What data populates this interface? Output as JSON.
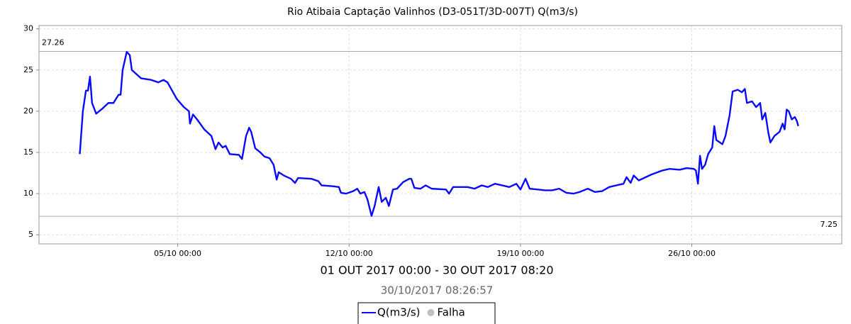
{
  "chart_data": {
    "type": "line",
    "title": "Rio Atibaia Captação Valinhos (D3-051T/3D-007T) Q(m3/s)",
    "subtitle": "01 OUT 2017 00:00 - 30 OUT 2017 08:20",
    "timestamp": "30/10/2017 08:26:57",
    "x": [
      "2017-10-01 00:00",
      "2017-10-01 03:00",
      "2017-10-01 06:00",
      "2017-10-01 08:00",
      "2017-10-01 10:00",
      "2017-10-01 12:00",
      "2017-10-01 16:00",
      "2017-10-01 22:00",
      "2017-10-02 04:00",
      "2017-10-02 09:00",
      "2017-10-02 14:00",
      "2017-10-02 16:00",
      "2017-10-02 18:00",
      "2017-10-02 22:00",
      "2017-10-03 01:00",
      "2017-10-03 03:00",
      "2017-10-03 12:00",
      "2017-10-03 22:00",
      "2017-10-04 05:00",
      "2017-10-04 10:00",
      "2017-10-04 14:00",
      "2017-10-04 23:00",
      "2017-10-05 06:00",
      "2017-10-05 11:00",
      "2017-10-05 12:00",
      "2017-10-05 15:00",
      "2017-10-05 19:00",
      "2017-10-06 02:00",
      "2017-10-06 09:00",
      "2017-10-06 13:00",
      "2017-10-06 16:00",
      "2017-10-06 20:00",
      "2017-10-06 23:00",
      "2017-10-07 03:00",
      "2017-10-07 12:00",
      "2017-10-07 15:00",
      "2017-10-07 19:00",
      "2017-10-07 22:00",
      "2017-10-08 00:00",
      "2017-10-08 04:00",
      "2017-10-08 09:00",
      "2017-10-08 13:00",
      "2017-10-08 18:00",
      "2017-10-08 22:00",
      "2017-10-09 01:00",
      "2017-10-09 03:00",
      "2017-10-09 08:00",
      "2017-10-09 15:00",
      "2017-10-09 19:00",
      "2017-10-09 22:00",
      "2017-10-10 11:00",
      "2017-10-10 18:00",
      "2017-10-10 21:00",
      "2017-10-11 08:00",
      "2017-10-11 14:00",
      "2017-10-11 16:00",
      "2017-10-11 21:00",
      "2017-10-12 04:00",
      "2017-10-12 08:00",
      "2017-10-12 11:00",
      "2017-10-12 15:00",
      "2017-10-12 18:00",
      "2017-10-12 22:00",
      "2017-10-13 01:00",
      "2017-10-13 05:00",
      "2017-10-13 08:00",
      "2017-10-13 12:00",
      "2017-10-13 15:00",
      "2017-10-13 19:00",
      "2017-10-13 23:00",
      "2017-10-14 05:00",
      "2017-10-14 11:00",
      "2017-10-14 13:00",
      "2017-10-14 16:00",
      "2017-10-14 22:00",
      "2017-10-15 03:00",
      "2017-10-15 09:00",
      "2017-10-15 23:00",
      "2017-10-16 02:00",
      "2017-10-16 06:00",
      "2017-10-16 20:00",
      "2017-10-17 03:00",
      "2017-10-17 10:00",
      "2017-10-17 16:00",
      "2017-10-17 23:00",
      "2017-10-18 06:00",
      "2017-10-18 13:00",
      "2017-10-18 20:00",
      "2017-10-19 00:00",
      "2017-10-19 05:00",
      "2017-10-19 09:00",
      "2017-10-19 17:00",
      "2017-10-20 00:00",
      "2017-10-20 07:00",
      "2017-10-20 14:00",
      "2017-10-20 21:00",
      "2017-10-21 04:00",
      "2017-10-21 10:00",
      "2017-10-21 18:00",
      "2017-10-22 01:00",
      "2017-10-22 08:00",
      "2017-10-22 15:00",
      "2017-10-22 22:00",
      "2017-10-23 05:00",
      "2017-10-23 08:00",
      "2017-10-23 12:00",
      "2017-10-23 15:00",
      "2017-10-23 20:00",
      "2017-10-24 08:00",
      "2017-10-24 19:00",
      "2017-10-25 02:00",
      "2017-10-25 12:00",
      "2017-10-25 19:00",
      "2017-10-26 02:00",
      "2017-10-26 04:00",
      "2017-10-26 06:00",
      "2017-10-26 08:00",
      "2017-10-26 10:00",
      "2017-10-26 13:00",
      "2017-10-26 16:00",
      "2017-10-26 20:00",
      "2017-10-26 22:00",
      "2017-10-27 00:00",
      "2017-10-27 06:00",
      "2017-10-27 09:00",
      "2017-10-27 13:00",
      "2017-10-27 16:00",
      "2017-10-27 21:00",
      "2017-10-28 01:00",
      "2017-10-28 04:00",
      "2017-10-28 06:00",
      "2017-10-28 11:00",
      "2017-10-28 15:00",
      "2017-10-28 19:00",
      "2017-10-28 21:00",
      "2017-10-29 00:00",
      "2017-10-29 03:00",
      "2017-10-29 05:00",
      "2017-10-29 09:00",
      "2017-10-29 14:00",
      "2017-10-29 17:00",
      "2017-10-29 19:00",
      "2017-10-29 21:00",
      "2017-10-29 23:00",
      "2017-10-30 02:00",
      "2017-10-30 05:00",
      "2017-10-30 07:00",
      "2017-10-30 08:20"
    ],
    "series": [
      {
        "name": "Q(m3/s)",
        "color": "#0a0aff",
        "values": [
          14.8,
          20,
          22.5,
          22.5,
          24.2,
          21,
          19.7,
          20.3,
          21,
          21,
          22,
          22,
          25,
          27.2,
          26.8,
          25,
          24,
          23.8,
          23.5,
          23.8,
          23.5,
          21.5,
          20.5,
          20,
          18.5,
          19.6,
          19,
          17.8,
          17,
          15.4,
          16.2,
          15.6,
          15.8,
          14.8,
          14.7,
          14.2,
          17,
          18,
          17.5,
          15.5,
          15,
          14.5,
          14.3,
          13.5,
          11.7,
          12.6,
          12.2,
          11.8,
          11.3,
          11.9,
          11.8,
          11.5,
          11,
          10.9,
          10.8,
          10.1,
          10,
          10.3,
          10.6,
          10,
          10.2,
          9.3,
          7.3,
          8.5,
          10.8,
          9,
          9.5,
          8.5,
          10.5,
          10.6,
          11.4,
          11.8,
          11.8,
          10.7,
          10.6,
          11,
          10.6,
          10.5,
          10,
          10.8,
          10.8,
          10.6,
          11,
          10.8,
          11.2,
          11,
          10.8,
          11.2,
          10.5,
          11.8,
          10.6,
          10.5,
          10.4,
          10.4,
          10.6,
          10.1,
          10,
          10.2,
          10.6,
          10.2,
          10.3,
          10.8,
          11,
          11.2,
          12,
          11.3,
          12.2,
          11.6,
          12.3,
          12.8,
          13,
          12.9,
          13.1,
          13,
          12.8,
          11.2,
          14.6,
          13,
          13.5,
          14.8,
          15.6,
          18.2,
          16.5,
          16,
          17,
          19.5,
          22.4,
          22.6,
          22.3,
          22.7,
          21,
          21.2,
          20.5,
          21,
          19,
          19.8,
          17.4,
          16.2,
          17,
          17.5,
          18.5,
          17.8,
          20.2,
          20,
          19,
          19.3,
          18.8,
          18.2
        ]
      }
    ],
    "legend_extra": [
      {
        "name": "Falha",
        "color": "#c0c0c0"
      }
    ],
    "hlines": [
      27.26,
      7.25
    ],
    "xlim": [
      "2017-09-29 08:00",
      "2017-11-01 03:00"
    ],
    "xticks": [
      {
        "value": "2017-10-05 00:00",
        "label": "05/10 00:00"
      },
      {
        "value": "2017-10-12 00:00",
        "label": "12/10 00:00"
      },
      {
        "value": "2017-10-19 00:00",
        "label": "19/10 00:00"
      },
      {
        "value": "2017-10-26 00:00",
        "label": "26/10 00:00"
      }
    ],
    "ylim": [
      3.9,
      30.4
    ],
    "yticks": [
      5,
      10,
      15,
      20,
      25,
      30
    ],
    "grid": true
  }
}
